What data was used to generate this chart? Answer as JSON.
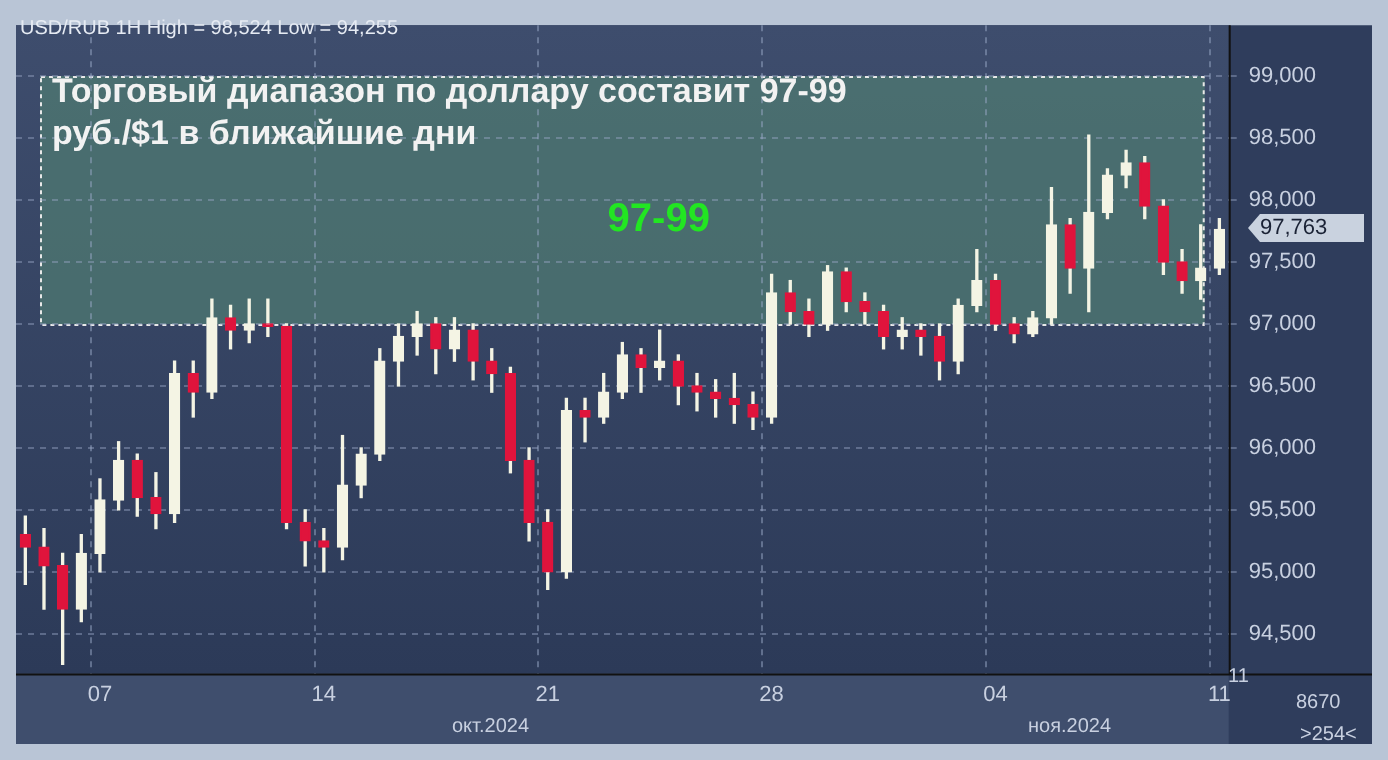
{
  "chart_data": {
    "type": "candlestick",
    "title": "Торговый диапазон по доллару составит 97-99 руб./$1 в ближайшие дни",
    "subtitle": "USD/RUB 1H High = 98,524 Low = 94,255",
    "categories": [
      null,
      null,
      null,
      null,
      "07",
      null,
      null,
      null,
      null,
      null,
      null,
      null,
      null,
      null,
      null,
      null,
      "14",
      null,
      null,
      null,
      null,
      null,
      null,
      null,
      null,
      null,
      null,
      null,
      "21",
      null,
      null,
      null,
      null,
      null,
      null,
      null,
      null,
      null,
      null,
      null,
      "28",
      null,
      null,
      null,
      null,
      null,
      null,
      null,
      null,
      null,
      null,
      null,
      "04",
      null,
      null,
      null,
      null,
      null,
      null,
      null,
      null,
      null,
      null,
      null,
      "11"
    ],
    "ohlc": [
      [
        95300,
        95450,
        94900,
        95200
      ],
      [
        95200,
        95350,
        94700,
        95050
      ],
      [
        95050,
        95150,
        94255,
        94700
      ],
      [
        94700,
        95300,
        94600,
        95150
      ],
      [
        95150,
        95750,
        95000,
        95580
      ],
      [
        95580,
        96050,
        95500,
        95900
      ],
      [
        95900,
        95950,
        95450,
        95600
      ],
      [
        95600,
        95800,
        95350,
        95470
      ],
      [
        95470,
        96700,
        95400,
        96600
      ],
      [
        96600,
        96700,
        96250,
        96450
      ],
      [
        96450,
        97200,
        96400,
        97050
      ],
      [
        97050,
        97150,
        96800,
        96950
      ],
      [
        96950,
        97200,
        96850,
        97000
      ],
      [
        97000,
        97200,
        96900,
        96980
      ],
      [
        96980,
        97000,
        95350,
        95400
      ],
      [
        95400,
        95500,
        95050,
        95250
      ],
      [
        95250,
        95350,
        95000,
        95200
      ],
      [
        95200,
        96100,
        95100,
        95700
      ],
      [
        95700,
        96000,
        95600,
        95950
      ],
      [
        95950,
        96800,
        95900,
        96700
      ],
      [
        96700,
        97000,
        96500,
        96900
      ],
      [
        96900,
        97100,
        96750,
        97000
      ],
      [
        97000,
        97050,
        96600,
        96800
      ],
      [
        96800,
        97050,
        96700,
        96950
      ],
      [
        96950,
        97000,
        96550,
        96700
      ],
      [
        96700,
        96800,
        96450,
        96600
      ],
      [
        96600,
        96650,
        95800,
        95900
      ],
      [
        95900,
        96000,
        95250,
        95400
      ],
      [
        95400,
        95500,
        94860,
        95000
      ],
      [
        95000,
        96400,
        94950,
        96300
      ],
      [
        96300,
        96400,
        96050,
        96250
      ],
      [
        96250,
        96600,
        96200,
        96450
      ],
      [
        96450,
        96850,
        96400,
        96750
      ],
      [
        96750,
        96800,
        96450,
        96650
      ],
      [
        96650,
        96950,
        96550,
        96700
      ],
      [
        96700,
        96750,
        96350,
        96500
      ],
      [
        96500,
        96600,
        96300,
        96450
      ],
      [
        96450,
        96550,
        96250,
        96400
      ],
      [
        96400,
        96600,
        96200,
        96350
      ],
      [
        96350,
        96450,
        96150,
        96250
      ],
      [
        96250,
        97400,
        96200,
        97250
      ],
      [
        97250,
        97350,
        97000,
        97100
      ],
      [
        97100,
        97200,
        96900,
        97000
      ],
      [
        97000,
        97470,
        96950,
        97420
      ],
      [
        97420,
        97450,
        97100,
        97180
      ],
      [
        97180,
        97250,
        97000,
        97100
      ],
      [
        97100,
        97150,
        96800,
        96900
      ],
      [
        96900,
        97050,
        96800,
        96950
      ],
      [
        96950,
        97000,
        96750,
        96900
      ],
      [
        96900,
        97000,
        96550,
        96700
      ],
      [
        96700,
        97200,
        96600,
        97150
      ],
      [
        97150,
        97600,
        97100,
        97350
      ],
      [
        97350,
        97400,
        96950,
        97000
      ],
      [
        97000,
        97050,
        96850,
        96920
      ],
      [
        96920,
        97100,
        96900,
        97050
      ],
      [
        97050,
        98100,
        97000,
        97800
      ],
      [
        97800,
        97850,
        97250,
        97450
      ],
      [
        97450,
        98524,
        97100,
        97900
      ],
      [
        97900,
        98250,
        97850,
        98200
      ],
      [
        98200,
        98400,
        98100,
        98300
      ],
      [
        98300,
        98350,
        97850,
        97950
      ],
      [
        97950,
        98000,
        97400,
        97500
      ],
      [
        97500,
        97600,
        97250,
        97350
      ],
      [
        97350,
        97800,
        97200,
        97450
      ],
      [
        97450,
        97850,
        97400,
        97763
      ]
    ],
    "ylim": [
      94180,
      99410
    ],
    "yticks": [
      {
        "value": 94500,
        "label": "94,500"
      },
      {
        "value": 95000,
        "label": "95,000"
      },
      {
        "value": 95500,
        "label": "95,500"
      },
      {
        "value": 96000,
        "label": "96,000"
      },
      {
        "value": 96500,
        "label": "96,500"
      },
      {
        "value": 97000,
        "label": "97,000"
      },
      {
        "value": 97500,
        "label": "97,500"
      },
      {
        "value": 98000,
        "label": "98,000"
      },
      {
        "value": 98500,
        "label": "98,500"
      },
      {
        "value": 99000,
        "label": "99,000"
      }
    ],
    "bands": [
      {
        "axis": "y",
        "from": 97000,
        "to": 99000,
        "label": "97-99",
        "color": "#4f7a72"
      }
    ],
    "annotations": [
      "окт.2024",
      "ноя.2024",
      "11",
      "8670",
      ">254<",
      "97,763"
    ],
    "grid": true,
    "legend": false
  }
}
